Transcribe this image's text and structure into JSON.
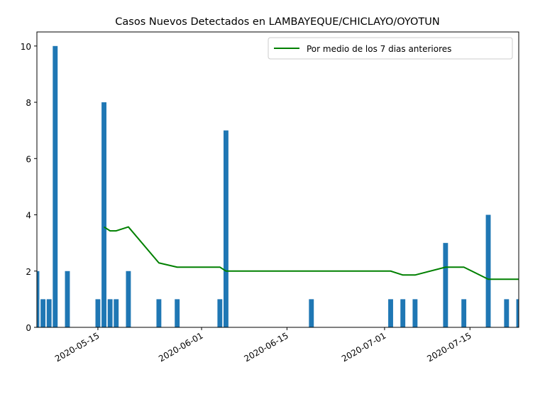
{
  "chart_data": {
    "type": "bar",
    "title": "Casos Nuevos Detectados en LAMBAYEQUE/CHICLAYO/OYOTUN",
    "xlabel": "",
    "ylabel": "",
    "x_range": [
      "2020-05-05",
      "2020-07-23"
    ],
    "ylim": [
      0,
      10.5
    ],
    "y_ticks": [
      0,
      2,
      4,
      6,
      8,
      10
    ],
    "x_ticks": [
      "2020-05-15",
      "2020-06-01",
      "2020-06-15",
      "2020-07-01",
      "2020-07-15"
    ],
    "grid": false,
    "legend_position": "upper right",
    "bar_color": "#1f77b4",
    "line_color": "#008000",
    "bars": [
      {
        "date": "2020-05-05",
        "value": 2
      },
      {
        "date": "2020-05-06",
        "value": 1
      },
      {
        "date": "2020-05-07",
        "value": 1
      },
      {
        "date": "2020-05-08",
        "value": 10
      },
      {
        "date": "2020-05-10",
        "value": 2
      },
      {
        "date": "2020-05-15",
        "value": 1
      },
      {
        "date": "2020-05-16",
        "value": 8
      },
      {
        "date": "2020-05-17",
        "value": 1
      },
      {
        "date": "2020-05-18",
        "value": 1
      },
      {
        "date": "2020-05-20",
        "value": 2
      },
      {
        "date": "2020-05-25",
        "value": 1
      },
      {
        "date": "2020-05-28",
        "value": 1
      },
      {
        "date": "2020-06-04",
        "value": 1
      },
      {
        "date": "2020-06-05",
        "value": 7
      },
      {
        "date": "2020-06-19",
        "value": 1
      },
      {
        "date": "2020-07-02",
        "value": 1
      },
      {
        "date": "2020-07-04",
        "value": 1
      },
      {
        "date": "2020-07-06",
        "value": 1
      },
      {
        "date": "2020-07-11",
        "value": 3
      },
      {
        "date": "2020-07-14",
        "value": 1
      },
      {
        "date": "2020-07-18",
        "value": 4
      },
      {
        "date": "2020-07-21",
        "value": 1
      },
      {
        "date": "2020-07-23",
        "value": 1
      }
    ],
    "series": [
      {
        "name": "Por medio de los 7 dias anteriores",
        "points": [
          {
            "date": "2020-05-16",
            "value": 3.57
          },
          {
            "date": "2020-05-17",
            "value": 3.43
          },
          {
            "date": "2020-05-18",
            "value": 3.43
          },
          {
            "date": "2020-05-20",
            "value": 3.57
          },
          {
            "date": "2020-05-25",
            "value": 2.29
          },
          {
            "date": "2020-05-28",
            "value": 2.14
          },
          {
            "date": "2020-06-04",
            "value": 2.14
          },
          {
            "date": "2020-06-05",
            "value": 2.0
          },
          {
            "date": "2020-06-19",
            "value": 2.0
          },
          {
            "date": "2020-07-02",
            "value": 2.0
          },
          {
            "date": "2020-07-04",
            "value": 1.86
          },
          {
            "date": "2020-07-06",
            "value": 1.86
          },
          {
            "date": "2020-07-11",
            "value": 2.14
          },
          {
            "date": "2020-07-14",
            "value": 2.14
          },
          {
            "date": "2020-07-18",
            "value": 1.71
          },
          {
            "date": "2020-07-21",
            "value": 1.71
          },
          {
            "date": "2020-07-23",
            "value": 1.71
          }
        ]
      }
    ]
  }
}
